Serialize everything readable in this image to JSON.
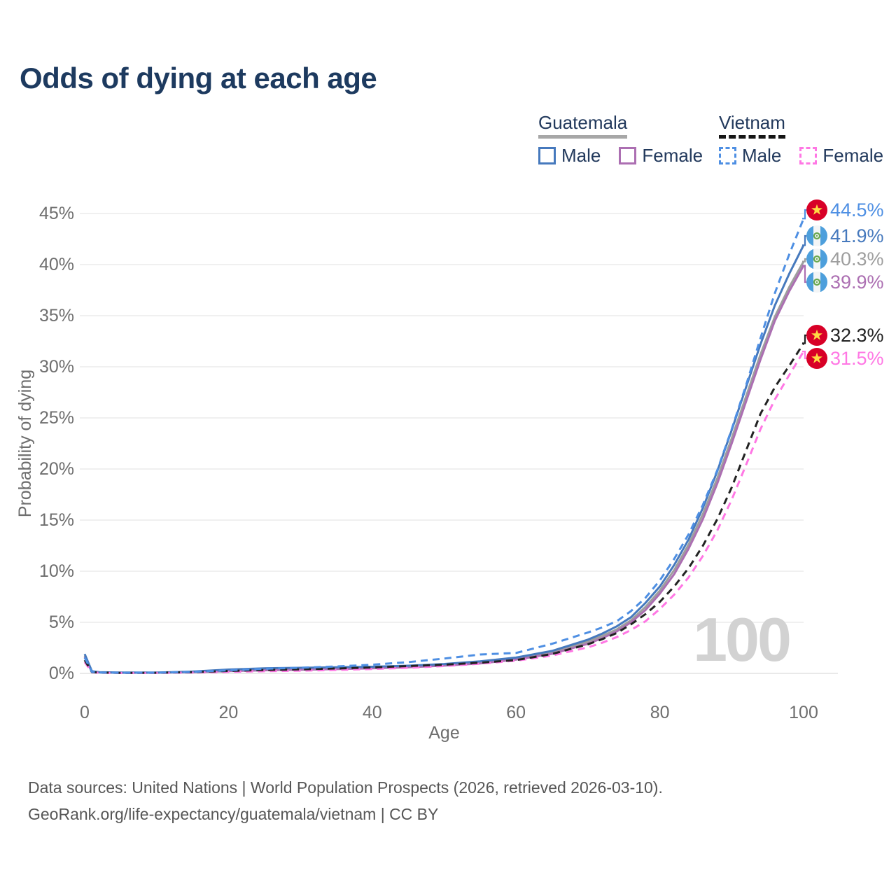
{
  "title": "Odds of dying at each age",
  "legend": {
    "groups": [
      {
        "country": "Guatemala",
        "style": "solid",
        "underline_color": "#a7a7a7",
        "items": [
          {
            "label": "Male",
            "color": "#4679bd"
          },
          {
            "label": "Female",
            "color": "#ac6fb2"
          }
        ]
      },
      {
        "country": "Vietnam",
        "style": "dashed",
        "underline_color": "#151515",
        "items": [
          {
            "label": "Male",
            "color": "#4e8fe3"
          },
          {
            "label": "Female",
            "color": "#ff77e4"
          }
        ]
      }
    ]
  },
  "chart_data": {
    "type": "line",
    "title": "Odds of dying at each age",
    "xlabel": "Age",
    "ylabel": "Probability of dying",
    "xlim": [
      0,
      100
    ],
    "ylim": [
      0,
      45
    ],
    "xticks": [
      0,
      20,
      40,
      60,
      80,
      100
    ],
    "yticks": [
      0,
      5,
      10,
      15,
      20,
      25,
      30,
      35,
      40,
      45
    ],
    "ytick_suffix": "%",
    "grid": true,
    "legend_position": "top-right",
    "watermark": "100",
    "x": [
      0,
      1,
      2,
      5,
      10,
      15,
      20,
      25,
      30,
      35,
      40,
      45,
      50,
      55,
      60,
      65,
      70,
      72,
      74,
      76,
      78,
      80,
      82,
      84,
      86,
      88,
      90,
      92,
      94,
      96,
      98,
      100
    ],
    "series": [
      {
        "key": "vietnam-male",
        "name": "Vietnam Male",
        "country": "Vietnam",
        "sex": "Male",
        "color": "#4e8fe3",
        "dashed": true,
        "flag": "vietnam",
        "end_value": 44.5,
        "end_label": "44.5%",
        "y": [
          1.55,
          0.16,
          0.09,
          0.06,
          0.07,
          0.15,
          0.3,
          0.45,
          0.55,
          0.68,
          0.85,
          1.1,
          1.45,
          1.85,
          2.0,
          2.9,
          4.0,
          4.5,
          5.1,
          6.1,
          7.4,
          9.1,
          11.2,
          13.6,
          16.5,
          19.9,
          23.9,
          28.2,
          32.8,
          37.2,
          41.0,
          44.5
        ]
      },
      {
        "key": "guatemala-male",
        "name": "Guatemala Male",
        "country": "Guatemala",
        "sex": "Male",
        "color": "#4679bd",
        "dashed": false,
        "flag": "guatemala",
        "end_value": 41.9,
        "end_label": "41.9%",
        "y": [
          1.9,
          0.22,
          0.12,
          0.08,
          0.08,
          0.18,
          0.38,
          0.5,
          0.55,
          0.6,
          0.65,
          0.75,
          0.92,
          1.18,
          1.55,
          2.2,
          3.3,
          3.9,
          4.6,
          5.5,
          6.9,
          8.5,
          10.6,
          13.1,
          16.2,
          19.8,
          23.8,
          28.0,
          32.2,
          36.0,
          39.1,
          41.9
        ]
      },
      {
        "key": "guatemala-total",
        "name": "Guatemala (both sexes)",
        "country": "Guatemala",
        "sex": "Both",
        "color": "#9e9e9e",
        "dashed": false,
        "flag": "guatemala",
        "end_value": 40.3,
        "end_label": "40.3%",
        "y": [
          1.75,
          0.19,
          0.11,
          0.07,
          0.07,
          0.15,
          0.3,
          0.4,
          0.45,
          0.5,
          0.57,
          0.67,
          0.84,
          1.08,
          1.45,
          2.05,
          3.1,
          3.67,
          4.3,
          5.2,
          6.5,
          8.1,
          10.1,
          12.6,
          15.6,
          19.1,
          23.0,
          27.1,
          31.2,
          34.9,
          37.8,
          40.3
        ]
      },
      {
        "key": "guatemala-female",
        "name": "Guatemala Female",
        "country": "Guatemala",
        "sex": "Female",
        "color": "#ac6fb2",
        "dashed": false,
        "flag": "guatemala",
        "end_value": 39.9,
        "end_label": "39.9%",
        "y": [
          1.6,
          0.17,
          0.1,
          0.06,
          0.06,
          0.12,
          0.22,
          0.3,
          0.36,
          0.42,
          0.5,
          0.6,
          0.76,
          0.98,
          1.35,
          1.92,
          2.9,
          3.45,
          4.1,
          5.0,
          6.2,
          7.8,
          9.7,
          12.2,
          15.1,
          18.6,
          22.5,
          26.6,
          30.7,
          34.5,
          37.4,
          39.9
        ]
      },
      {
        "key": "vietnam-total",
        "name": "Vietnam (both sexes)",
        "country": "Vietnam",
        "sex": "Both",
        "color": "#222222",
        "dashed": true,
        "flag": "vietnam",
        "end_value": 32.3,
        "end_label": "32.3%",
        "y": [
          1.3,
          0.13,
          0.08,
          0.05,
          0.06,
          0.12,
          0.24,
          0.33,
          0.4,
          0.48,
          0.58,
          0.72,
          0.85,
          1.05,
          1.3,
          1.9,
          2.85,
          3.35,
          3.95,
          4.8,
          5.8,
          7.0,
          8.5,
          10.3,
          12.5,
          15.1,
          18.2,
          21.8,
          25.4,
          28.0,
          30.1,
          32.3
        ]
      },
      {
        "key": "vietnam-female",
        "name": "Vietnam Female",
        "country": "Vietnam",
        "sex": "Female",
        "color": "#ff77e4",
        "dashed": true,
        "flag": "vietnam",
        "end_value": 31.5,
        "end_label": "31.5%",
        "y": [
          1.1,
          0.11,
          0.07,
          0.04,
          0.05,
          0.09,
          0.15,
          0.21,
          0.27,
          0.34,
          0.43,
          0.55,
          0.72,
          0.95,
          1.25,
          1.75,
          2.55,
          3.0,
          3.55,
          4.25,
          5.1,
          6.3,
          7.7,
          9.4,
          11.5,
          14.0,
          17.0,
          20.4,
          23.9,
          26.8,
          29.2,
          31.5
        ]
      }
    ]
  },
  "footer": {
    "line1": "Data sources: United Nations | World Population Prospects (2026, retrieved 2026-03-10).",
    "line2": "GeoRank.org/life-expectancy/guatemala/vietnam | CC BY"
  }
}
